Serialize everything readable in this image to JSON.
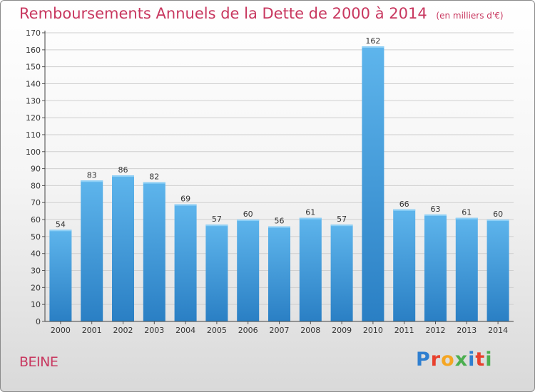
{
  "header": {
    "title": "Remboursements Annuels de la Dette de 2000 à 2014",
    "note": "(en milliers d'€)"
  },
  "footer": {
    "commune": "BEINE",
    "logo_text": "Proxiti",
    "logo_colors": [
      "#2f7fd0",
      "#e8402d",
      "#f5a623",
      "#4caf50",
      "#2f7fd0",
      "#e8402d",
      "#4caf50"
    ]
  },
  "colors": {
    "accent": "#c8375f",
    "bar_light": "#5eb5ec",
    "bar_dark": "#2a7fc4",
    "grid": "#cfcfcf"
  },
  "chart_data": {
    "type": "bar",
    "title": "Remboursements Annuels de la Dette de 2000 à 2014",
    "categories": [
      "2000",
      "2001",
      "2002",
      "2003",
      "2004",
      "2005",
      "2006",
      "2007",
      "2008",
      "2009",
      "2010",
      "2011",
      "2012",
      "2013",
      "2014"
    ],
    "values": [
      54,
      83,
      86,
      82,
      69,
      57,
      60,
      56,
      61,
      57,
      162,
      66,
      63,
      61,
      60
    ],
    "ylim": [
      0,
      170
    ],
    "yticks": [
      0,
      10,
      20,
      30,
      40,
      50,
      60,
      70,
      80,
      90,
      100,
      110,
      120,
      130,
      140,
      150,
      160,
      170
    ],
    "grid": true,
    "data_labels": true
  }
}
